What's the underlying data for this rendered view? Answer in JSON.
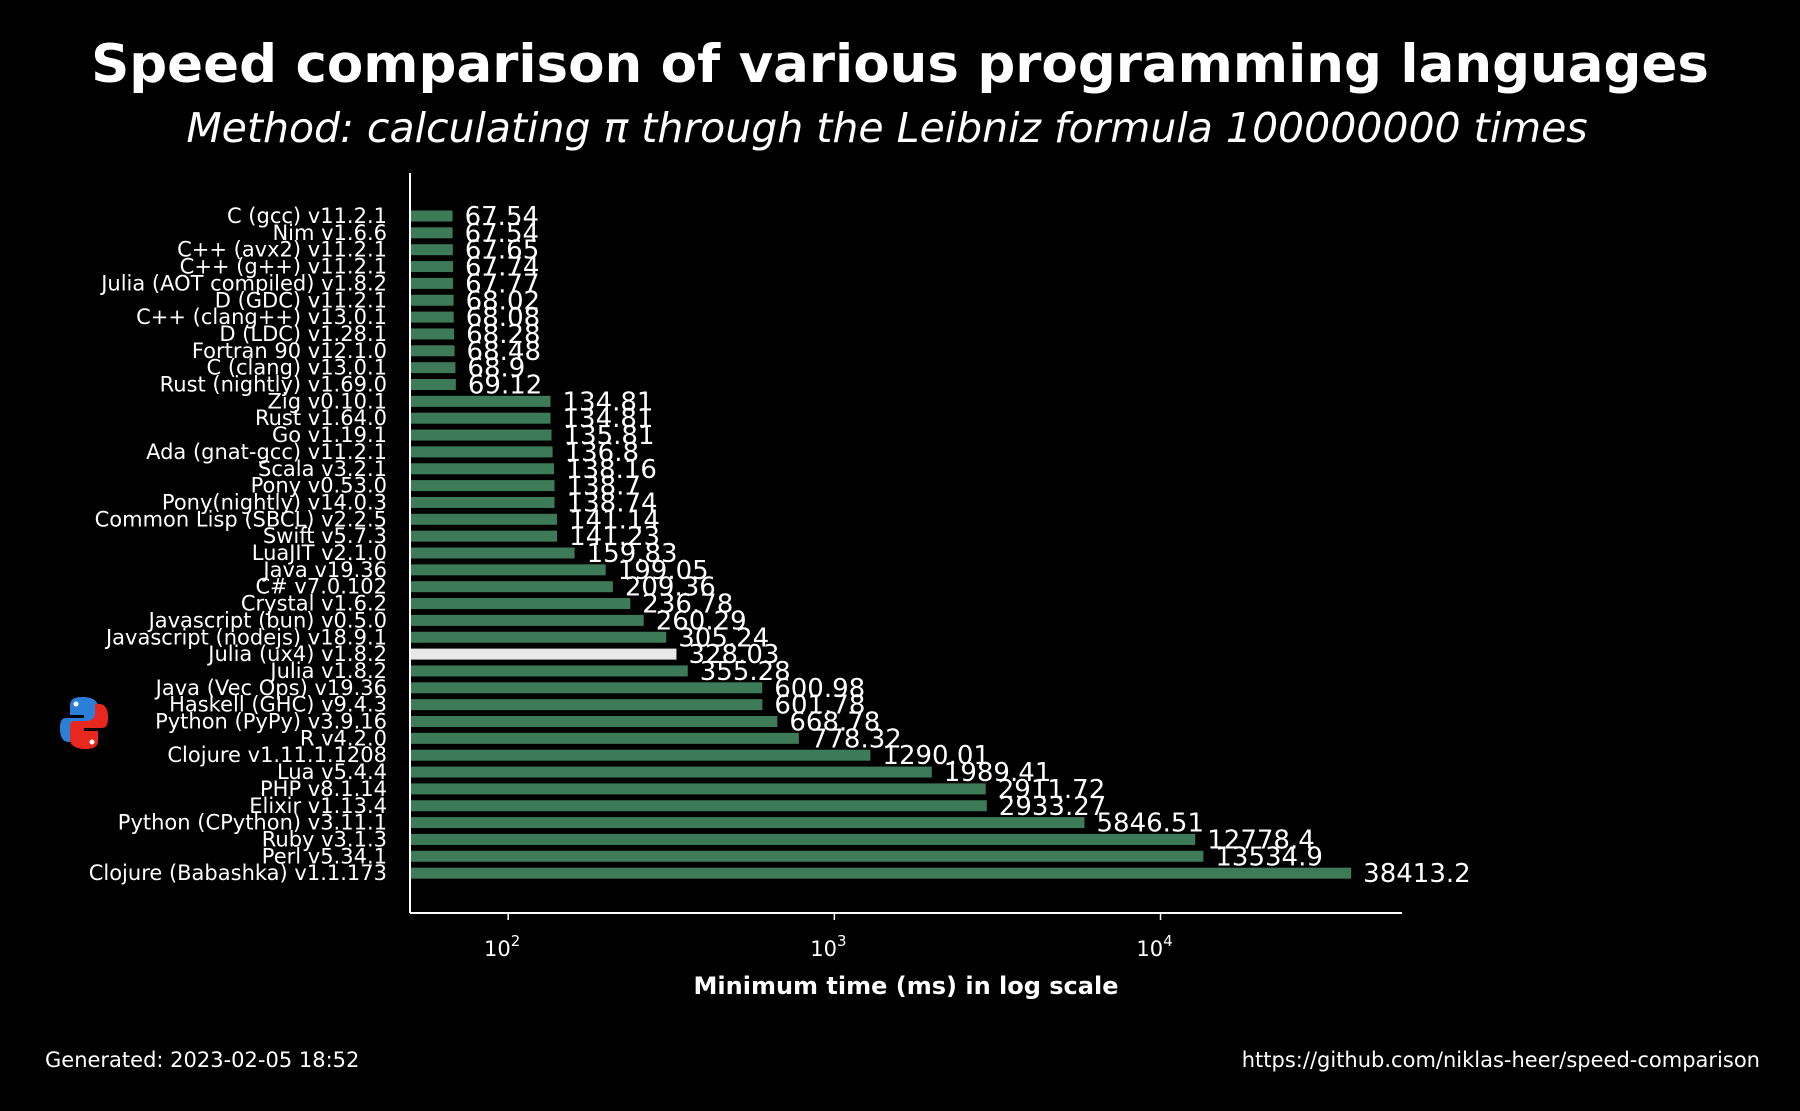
{
  "chart_data": {
    "type": "bar",
    "orientation": "horizontal",
    "title": "Speed comparison of various programming languages",
    "subtitle": "Method: calculating π through the Leibniz formula 100000000 times",
    "xlabel": "Minimum time (ms) in log scale",
    "xscale": "log",
    "xlim": [
      50,
      55000
    ],
    "xticks": [
      100,
      1000,
      10000
    ],
    "xtick_labels": [
      {
        "base": "10",
        "exp": "2"
      },
      {
        "base": "10",
        "exp": "3"
      },
      {
        "base": "10",
        "exp": "4"
      }
    ],
    "categories": [
      "C (gcc) v11.2.1",
      "Nim v1.6.6",
      "C++ (avx2) v11.2.1",
      "C++ (g++) v11.2.1",
      "Julia (AOT compiled) v1.8.2",
      "D (GDC) v11.2.1",
      "C++ (clang++) v13.0.1",
      "D (LDC) v1.28.1",
      "Fortran 90 v12.1.0",
      "C (clang) v13.0.1",
      "Rust (nightly) v1.69.0",
      "Zig v0.10.1",
      "Rust v1.64.0",
      "Go v1.19.1",
      "Ada (gnat-gcc) v11.2.1",
      "Scala v3.2.1",
      "Pony v0.53.0",
      "Pony(nightly) v14.0.3",
      "Common Lisp (SBCL) v2.2.5",
      "Swift v5.7.3",
      "LuaJIT v2.1.0",
      "Java v19.36",
      "C# v7.0.102",
      "Crystal v1.6.2",
      "Javascript (bun) v0.5.0",
      "Javascript (nodejs) v18.9.1",
      "Julia (ux4) v1.8.2",
      "Julia v1.8.2",
      "Java (Vec Ops) v19.36",
      "Haskell (GHC) v9.4.3",
      "Python (PyPy) v3.9.16",
      "R v4.2.0",
      "Clojure v1.11.1.1208",
      "Lua v5.4.4",
      "PHP v8.1.14",
      "Elixir v1.13.4",
      "Python (CPython) v3.11.1",
      "Ruby v3.1.3",
      "Perl v5.34.1",
      "Clojure (Babashka) v1.1.173"
    ],
    "values": [
      67.54,
      67.54,
      67.65,
      67.74,
      67.77,
      68.02,
      68.08,
      68.28,
      68.48,
      68.9,
      69.12,
      134.81,
      134.81,
      135.81,
      136.8,
      138.16,
      138.7,
      138.74,
      141.14,
      141.23,
      159.83,
      199.05,
      209.36,
      236.78,
      260.29,
      305.24,
      328.03,
      355.28,
      600.98,
      601.78,
      668.78,
      778.32,
      1290.01,
      1989.41,
      2911.72,
      2933.27,
      5846.51,
      12778.4,
      13534.9,
      38413.2
    ],
    "value_labels": [
      "67.54",
      "67.54",
      "67.65",
      "67.74",
      "67.77",
      "68.02",
      "68.08",
      "68.28",
      "68.48",
      "68.9",
      "69.12",
      "134.81",
      "134.81",
      "135.81",
      "136.8",
      "138.16",
      "138.7",
      "138.74",
      "141.14",
      "141.23",
      "159.83",
      "199.05",
      "209.36",
      "236.78",
      "260.29",
      "305.24",
      "328.03",
      "355.28",
      "600.98",
      "601.78",
      "668.78",
      "778.32",
      "1290.01",
      "1989.41",
      "2911.72",
      "2933.27",
      "5846.51",
      "12778.4",
      "13534.9",
      "38413.2"
    ],
    "highlight_index": 26,
    "bar_color": "#3d7a57",
    "highlight_color": "#e8e8e8",
    "legend": "none",
    "grid": false
  },
  "python_logo_icon": "python-logo-icon",
  "footer": {
    "generated": "Generated: 2023-02-05 18:52",
    "url": "https://github.com/niklas-heer/speed-comparison"
  }
}
